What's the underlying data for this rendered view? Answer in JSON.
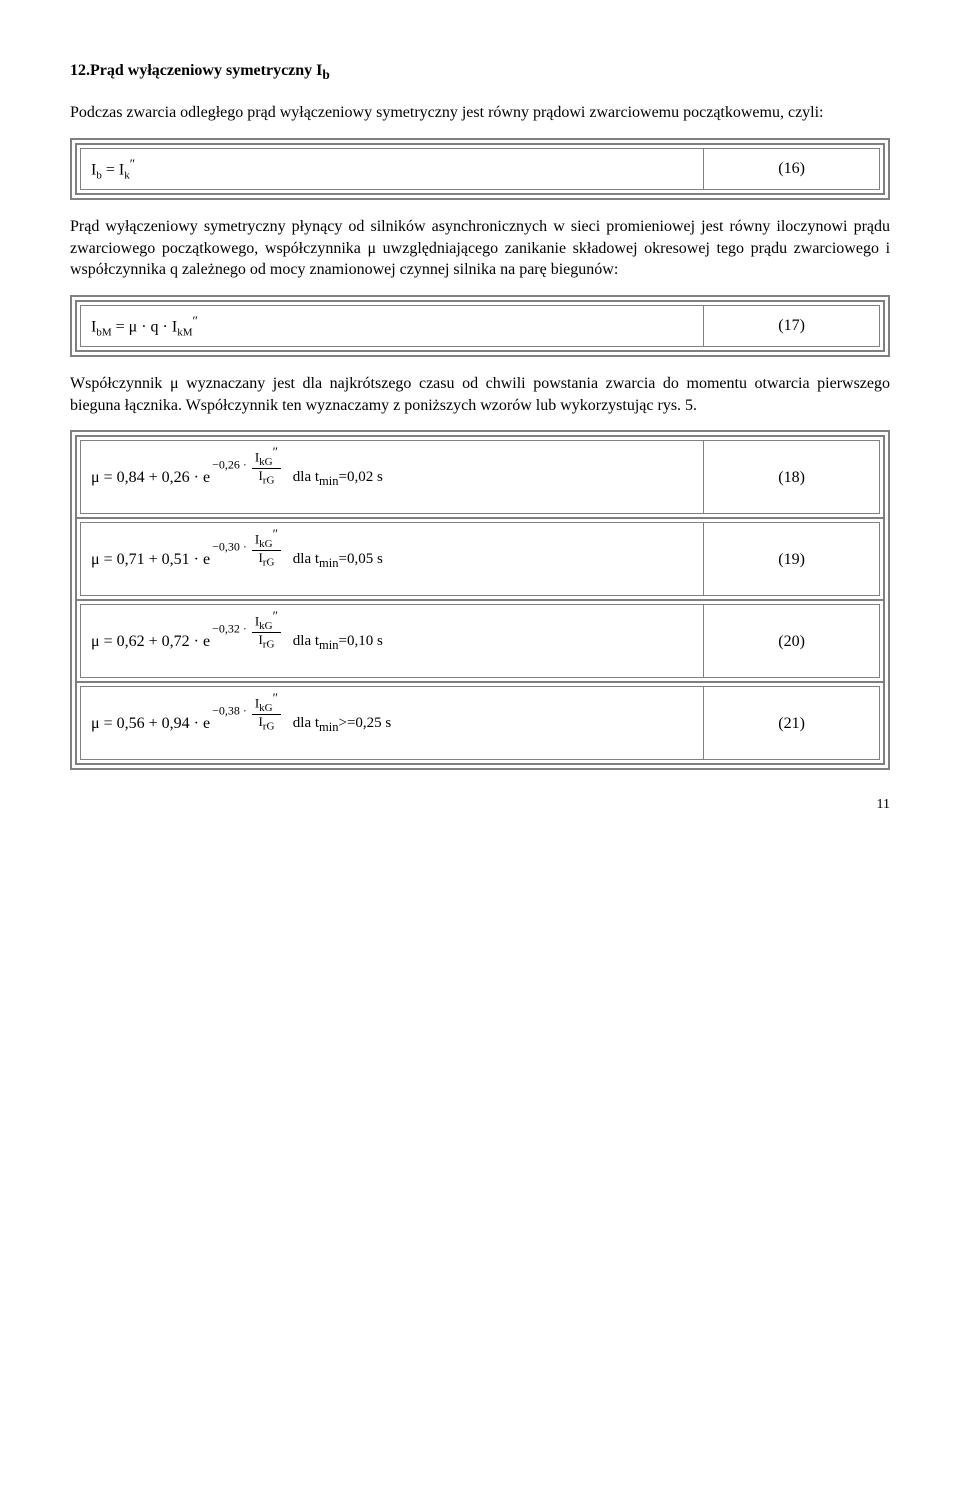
{
  "section": {
    "number": "12",
    "title": ".Prąd wyłączeniowy symetryczny I",
    "title_sub": "b"
  },
  "para1": "Podczas zwarcia odległego prąd wyłączeniowy symetryczny jest równy prądowi zwarciowemu początkowemu, czyli:",
  "eq16": {
    "formula_html": "I<span class='fsub'>b</span> = I<span class='fsub'>k</span><span class='prime'>″</span>",
    "num": "(16)"
  },
  "para2_a": "Prąd wyłączeniowy symetryczny płynący od silników asynchronicznych w sieci promieniowej jest równy iloczynowi prądu zwarciowego początkowego, współczynnika ",
  "para2_b": " uwzględniającego zanikanie składowej okresowej tego prądu zwarciowego i współczynnika q zależnego od mocy znamionowej czynnej silnika na parę biegunów:",
  "mu": "μ",
  "eq17": {
    "formula_html": "I<span class='fsub'>bM</span> = μ · q · I<span class='fsub'>kM</span><span class='prime'>″</span>",
    "num": "(17)"
  },
  "para3_a": "Współczynnik ",
  "para3_b": " wyznaczany jest dla najkrótszego czasu od chwili powstania zwarcia do momentu otwarcia pierwszego bieguna łącznika. Współczynnik ten wyznaczamy z poniższych wzorów lub wykorzystując rys. 5.",
  "eqs": [
    {
      "coef1": "0,84",
      "coef2": "0,26",
      "expcoef": "0,26",
      "t": "0,02",
      "num": "(18)",
      "op": "="
    },
    {
      "coef1": "0,71",
      "coef2": "0,51",
      "expcoef": "0,30",
      "t": "0,05",
      "num": "(19)",
      "op": "="
    },
    {
      "coef1": "0,62",
      "coef2": "0,72",
      "expcoef": "0,32",
      "t": "0,10",
      "num": "(20)",
      "op": "="
    },
    {
      "coef1": "0,56",
      "coef2": "0,94",
      "expcoef": "0,38",
      "t": "0,25",
      "num": "(21)",
      "op": ">="
    }
  ],
  "page_number": "11"
}
